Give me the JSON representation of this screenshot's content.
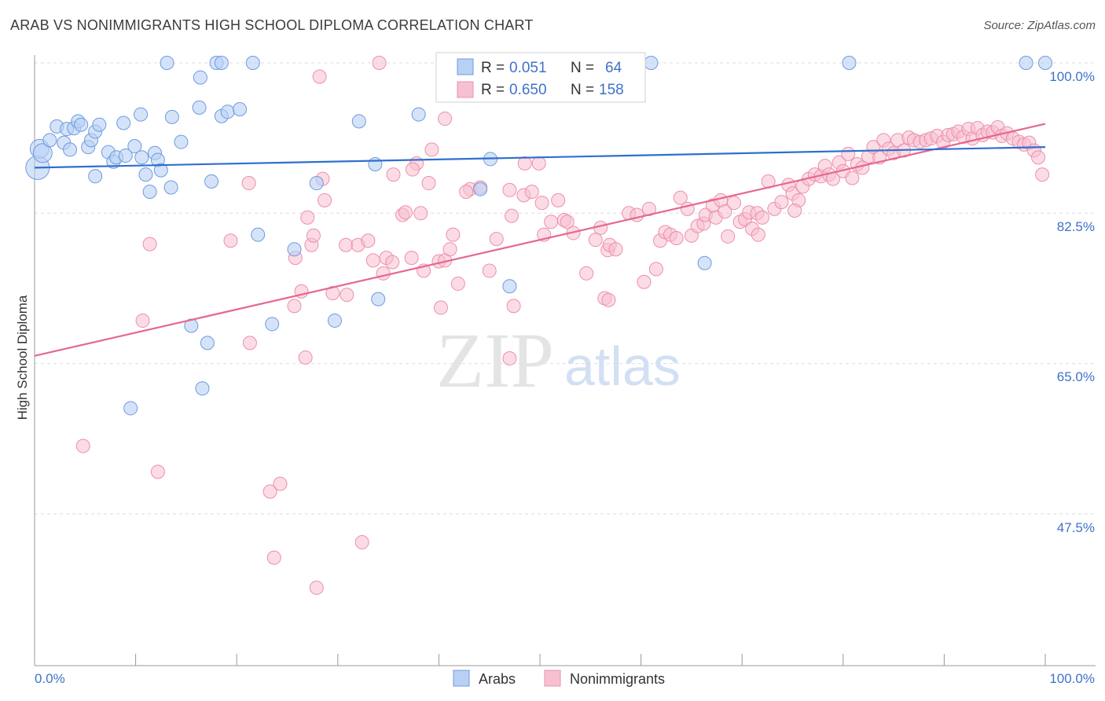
{
  "title": "ARAB VS NONIMMIGRANTS HIGH SCHOOL DIPLOMA CORRELATION CHART",
  "source": "Source: ZipAtlas.com",
  "watermark": {
    "zip": "ZIP",
    "atlas": "atlas"
  },
  "colors": {
    "arabs_fill": "#b9d0f5",
    "arabs_stroke": "#6d9be0",
    "arabs_line": "#2f6fd0",
    "nonimm_fill": "#f7c0d0",
    "nonimm_stroke": "#ec8fac",
    "nonimm_line": "#e5688f",
    "tick_text": "#3f72c8",
    "grid": "#dddddd"
  },
  "legend": {
    "rows": [
      {
        "r_label": "R = ",
        "r_value": "0.051",
        "n_label": "N = ",
        "n_value": "64"
      },
      {
        "r_label": "R = ",
        "r_value": "0.650",
        "n_label": "N = ",
        "n_value": "158"
      }
    ]
  },
  "bottom_legend": [
    "Arabs",
    "Nonimmigrants"
  ],
  "chart_data": {
    "type": "scatter",
    "ylabel": "High School Diploma",
    "xlabel": "",
    "x_tick_labels": [
      "0.0%",
      "100.0%"
    ],
    "y_tick_labels": [
      "100.0%",
      "82.5%",
      "65.0%",
      "47.5%"
    ],
    "xlim": [
      0,
      100
    ],
    "ylim": [
      32.5,
      103
    ],
    "grid": "horizontal dashed",
    "series": [
      {
        "name": "Arabs",
        "trend": {
          "x": [
            0,
            100
          ],
          "y": [
            87.8,
            90.2
          ]
        },
        "points": [
          [
            0.3,
            87.8,
            "L"
          ],
          [
            0.5,
            90.0,
            "M"
          ],
          [
            0.8,
            89.5,
            "M"
          ],
          [
            1.5,
            91.0,
            "S"
          ],
          [
            2.2,
            92.6,
            "S"
          ],
          [
            2.9,
            90.7,
            "S"
          ],
          [
            3.2,
            92.3,
            "S"
          ],
          [
            3.5,
            89.9,
            "S"
          ],
          [
            3.9,
            92.4,
            "S"
          ],
          [
            4.3,
            93.2,
            "S"
          ],
          [
            4.6,
            92.8,
            "S"
          ],
          [
            5.3,
            90.2,
            "S"
          ],
          [
            5.6,
            91.0,
            "S"
          ],
          [
            6.0,
            92.0,
            "S"
          ],
          [
            6.4,
            92.8,
            "S"
          ],
          [
            7.3,
            89.6,
            "S"
          ],
          [
            7.8,
            88.5,
            "S"
          ],
          [
            8.1,
            89.0,
            "S"
          ],
          [
            8.8,
            93.0,
            "S"
          ],
          [
            9.0,
            89.2,
            "S"
          ],
          [
            9.9,
            90.3,
            "S"
          ],
          [
            10.5,
            94.0,
            "S"
          ],
          [
            10.6,
            89.0,
            "S"
          ],
          [
            11.0,
            87.0,
            "S"
          ],
          [
            11.4,
            85.0,
            "S"
          ],
          [
            11.9,
            89.5,
            "S"
          ],
          [
            12.2,
            88.7,
            "S"
          ],
          [
            12.5,
            87.5,
            "S"
          ],
          [
            13.5,
            85.5,
            "S"
          ],
          [
            13.6,
            93.7,
            "S"
          ],
          [
            14.5,
            90.8,
            "S"
          ],
          [
            6.0,
            86.8,
            "S"
          ],
          [
            13.1,
            100.0,
            "S"
          ],
          [
            16.4,
            98.3,
            "S"
          ],
          [
            18.0,
            100.0,
            "S"
          ],
          [
            18.5,
            100.0,
            "S"
          ],
          [
            21.6,
            100.0,
            "S"
          ],
          [
            16.3,
            94.8,
            "S"
          ],
          [
            17.5,
            86.2,
            "S"
          ],
          [
            18.5,
            93.8,
            "S"
          ],
          [
            19.1,
            94.3,
            "S"
          ],
          [
            20.3,
            94.6,
            "S"
          ],
          [
            22.1,
            80.0,
            "S"
          ],
          [
            23.5,
            69.6,
            "S"
          ],
          [
            25.7,
            78.3,
            "S"
          ],
          [
            27.9,
            86.0,
            "S"
          ],
          [
            29.7,
            70.0,
            "S"
          ],
          [
            32.1,
            93.2,
            "S"
          ],
          [
            33.7,
            88.2,
            "S"
          ],
          [
            34.0,
            72.5,
            "S"
          ],
          [
            38.0,
            94.0,
            "S"
          ],
          [
            44.1,
            85.3,
            "S"
          ],
          [
            45.1,
            88.8,
            "S"
          ],
          [
            47.0,
            74.0,
            "S"
          ],
          [
            48.5,
            100.0,
            "S"
          ],
          [
            61.0,
            100.0,
            "S"
          ],
          [
            80.6,
            100.0,
            "S"
          ],
          [
            66.3,
            76.7,
            "S"
          ],
          [
            15.5,
            69.4,
            "S"
          ],
          [
            17.1,
            67.4,
            "S"
          ],
          [
            16.6,
            62.1,
            "S"
          ],
          [
            9.5,
            59.8,
            "S"
          ],
          [
            98.1,
            100.0,
            "S"
          ],
          [
            100.0,
            100.0,
            "S"
          ]
        ]
      },
      {
        "name": "Nonimmigrants",
        "trend": {
          "x": [
            0,
            100
          ],
          "y": [
            65.9,
            92.9
          ]
        },
        "points": [
          [
            34.1,
            100.0
          ],
          [
            28.2,
            98.4
          ],
          [
            40.6,
            93.5
          ],
          [
            39.3,
            89.9
          ],
          [
            37.8,
            88.3
          ],
          [
            37.4,
            87.6
          ],
          [
            35.5,
            87.0
          ],
          [
            39.0,
            86.0
          ],
          [
            43.1,
            85.3
          ],
          [
            37.3,
            77.3
          ],
          [
            27.4,
            78.8
          ],
          [
            28.5,
            86.5
          ],
          [
            21.2,
            86.0
          ],
          [
            19.4,
            79.3
          ],
          [
            11.4,
            78.9
          ],
          [
            10.7,
            70.0
          ],
          [
            28.7,
            84.0
          ],
          [
            27.0,
            82.0
          ],
          [
            27.6,
            79.9
          ],
          [
            25.8,
            77.3
          ],
          [
            26.4,
            73.4
          ],
          [
            25.7,
            71.7
          ],
          [
            29.5,
            73.2
          ],
          [
            30.9,
            73.0
          ],
          [
            30.8,
            78.8
          ],
          [
            32.0,
            78.8
          ],
          [
            33.0,
            79.3
          ],
          [
            33.5,
            77.0
          ],
          [
            34.5,
            75.5
          ],
          [
            34.8,
            77.3
          ],
          [
            35.4,
            76.8
          ],
          [
            36.4,
            82.3
          ],
          [
            36.7,
            82.6
          ],
          [
            38.2,
            82.5
          ],
          [
            40.0,
            76.9
          ],
          [
            40.2,
            71.5
          ],
          [
            40.6,
            77.0
          ],
          [
            41.1,
            78.3
          ],
          [
            41.4,
            80.0
          ],
          [
            41.9,
            74.3
          ],
          [
            42.7,
            85.0
          ],
          [
            44.1,
            85.5
          ],
          [
            45.7,
            79.5
          ],
          [
            45.0,
            75.8
          ],
          [
            47.0,
            85.2
          ],
          [
            47.2,
            82.2
          ],
          [
            47.4,
            71.7
          ],
          [
            48.5,
            88.3
          ],
          [
            48.4,
            84.6
          ],
          [
            49.2,
            85.0
          ],
          [
            49.9,
            88.3
          ],
          [
            50.2,
            83.7
          ],
          [
            50.4,
            80.0
          ],
          [
            51.1,
            81.5
          ],
          [
            51.8,
            84.0
          ],
          [
            52.4,
            81.7
          ],
          [
            52.7,
            81.5
          ],
          [
            53.3,
            80.2
          ],
          [
            54.6,
            75.5
          ],
          [
            55.5,
            79.4
          ],
          [
            56.0,
            80.8
          ],
          [
            56.7,
            78.2
          ],
          [
            56.9,
            78.8
          ],
          [
            56.4,
            72.6
          ],
          [
            56.8,
            72.4
          ],
          [
            57.5,
            78.3
          ],
          [
            58.8,
            82.5
          ],
          [
            59.6,
            82.3
          ],
          [
            60.3,
            74.5
          ],
          [
            60.8,
            83.0
          ],
          [
            61.5,
            76.0
          ],
          [
            61.9,
            79.3
          ],
          [
            62.4,
            80.3
          ],
          [
            62.9,
            80.0
          ],
          [
            63.5,
            79.6
          ],
          [
            63.9,
            84.3
          ],
          [
            64.6,
            83.0
          ],
          [
            65.0,
            79.9
          ],
          [
            65.6,
            81.0
          ],
          [
            66.2,
            81.3
          ],
          [
            66.4,
            82.3
          ],
          [
            67.1,
            83.4
          ],
          [
            67.4,
            82.0
          ],
          [
            67.9,
            84.0
          ],
          [
            68.3,
            82.7
          ],
          [
            68.6,
            79.8
          ],
          [
            69.2,
            83.7
          ],
          [
            69.8,
            81.5
          ],
          [
            70.3,
            81.8
          ],
          [
            70.7,
            82.6
          ],
          [
            71.0,
            80.7
          ],
          [
            71.5,
            82.5
          ],
          [
            72.0,
            82.0
          ],
          [
            72.6,
            86.2
          ],
          [
            73.2,
            83.0
          ],
          [
            73.9,
            83.8
          ],
          [
            74.6,
            85.8
          ],
          [
            75.0,
            84.8
          ],
          [
            75.6,
            84.0
          ],
          [
            76.0,
            85.6
          ],
          [
            76.6,
            86.5
          ],
          [
            77.2,
            87.0
          ],
          [
            77.8,
            86.8
          ],
          [
            78.2,
            88.0
          ],
          [
            78.6,
            87.0
          ],
          [
            79.0,
            86.5
          ],
          [
            79.6,
            88.4
          ],
          [
            80.0,
            87.4
          ],
          [
            80.5,
            89.4
          ],
          [
            80.9,
            86.6
          ],
          [
            81.4,
            88.2
          ],
          [
            81.9,
            87.8
          ],
          [
            82.5,
            89.1
          ],
          [
            83.0,
            90.2
          ],
          [
            83.6,
            89.0
          ],
          [
            84.0,
            91.0
          ],
          [
            84.5,
            90.0
          ],
          [
            85.0,
            89.5
          ],
          [
            85.4,
            91.0
          ],
          [
            86.0,
            89.8
          ],
          [
            86.5,
            91.3
          ],
          [
            87.0,
            91.0
          ],
          [
            87.6,
            90.8
          ],
          [
            88.2,
            91.0
          ],
          [
            88.7,
            91.2
          ],
          [
            89.3,
            91.5
          ],
          [
            89.9,
            90.8
          ],
          [
            90.4,
            91.6
          ],
          [
            90.9,
            91.7
          ],
          [
            91.4,
            92.0
          ],
          [
            91.9,
            91.4
          ],
          [
            92.4,
            92.3
          ],
          [
            92.8,
            91.2
          ],
          [
            93.3,
            92.4
          ],
          [
            93.8,
            91.6
          ],
          [
            94.3,
            92.0
          ],
          [
            94.8,
            91.9
          ],
          [
            95.3,
            92.5
          ],
          [
            95.7,
            91.5
          ],
          [
            96.2,
            91.8
          ],
          [
            96.8,
            91.2
          ],
          [
            97.4,
            90.8
          ],
          [
            97.9,
            90.5
          ],
          [
            98.4,
            90.7
          ],
          [
            98.9,
            89.8
          ],
          [
            99.3,
            89.0
          ],
          [
            99.7,
            87.0
          ],
          [
            71.6,
            80.0
          ],
          [
            75.2,
            82.8
          ],
          [
            38.5,
            75.8
          ],
          [
            26.8,
            65.7
          ],
          [
            47.0,
            65.6
          ],
          [
            21.3,
            67.4
          ],
          [
            4.8,
            55.4
          ],
          [
            12.2,
            52.4
          ],
          [
            23.3,
            50.1
          ],
          [
            24.3,
            51.0
          ],
          [
            23.7,
            42.4
          ],
          [
            32.4,
            44.2
          ],
          [
            27.9,
            38.9
          ]
        ]
      }
    ]
  }
}
